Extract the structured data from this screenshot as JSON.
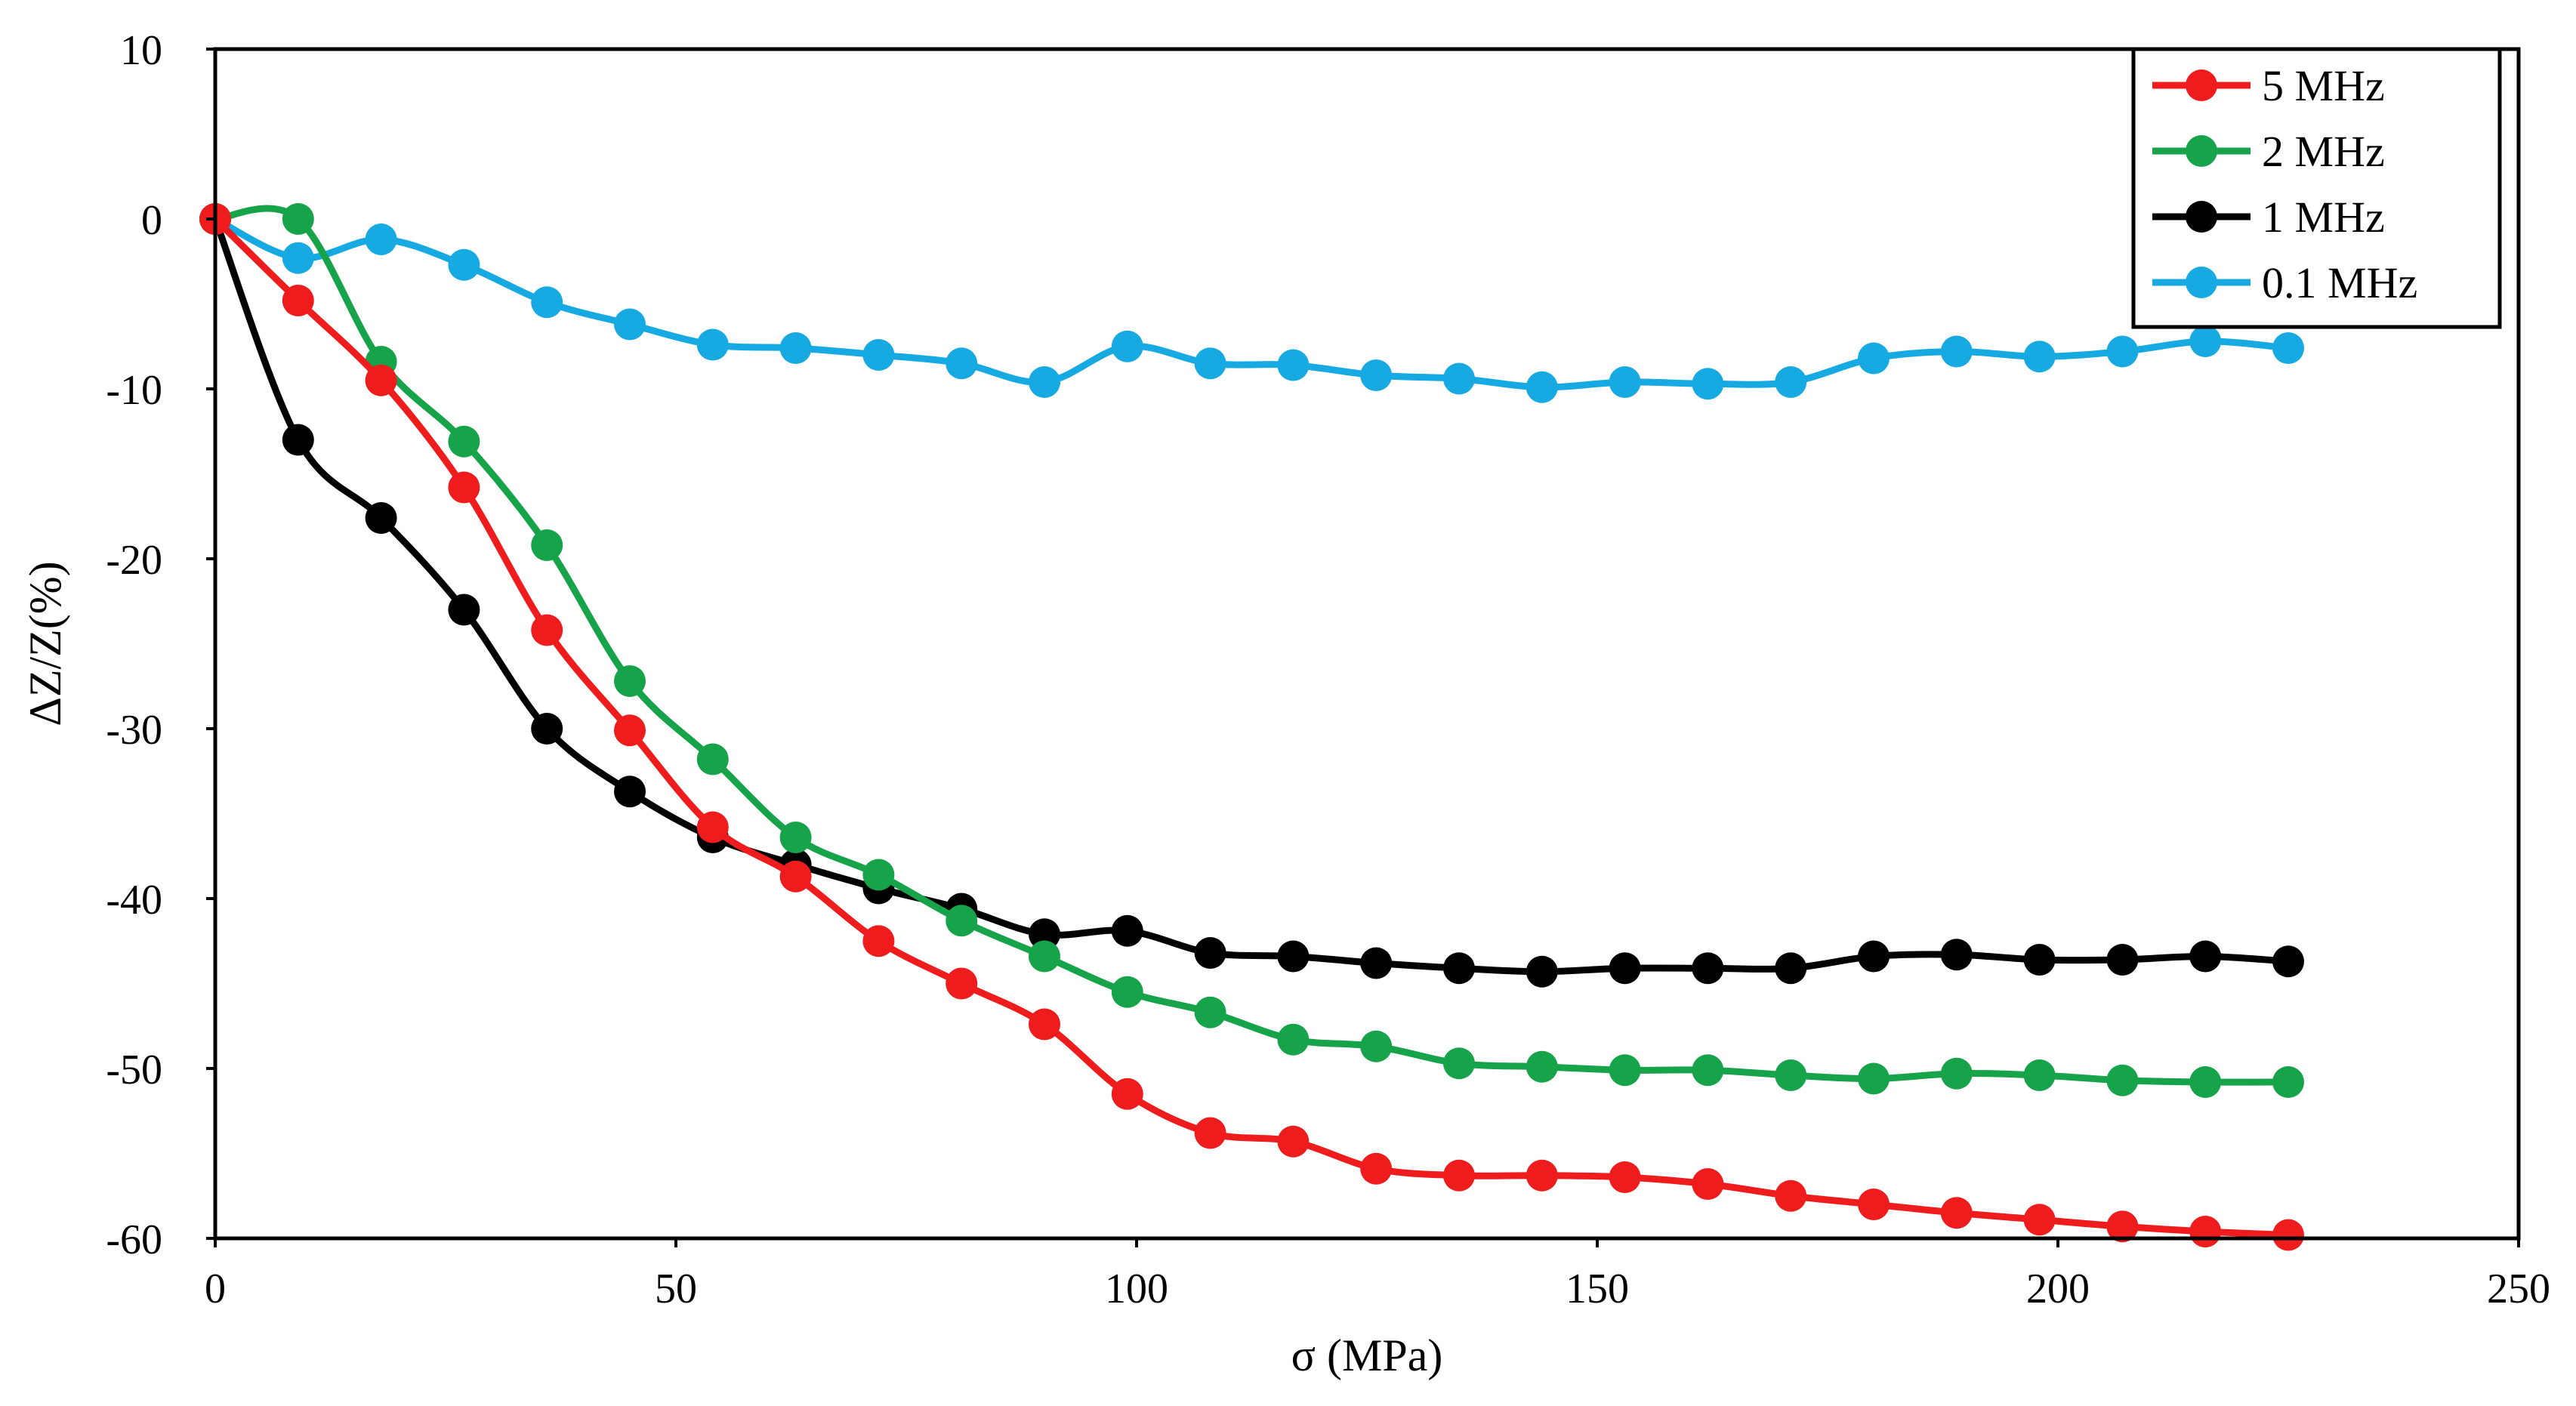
{
  "chart_data": {
    "type": "line",
    "title": "",
    "xlabel": "σ (MPa)",
    "ylabel": "ΔZ/Z(%)",
    "xlim": [
      0,
      250
    ],
    "ylim": [
      -60,
      10
    ],
    "xticks": [
      0,
      50,
      100,
      150,
      200,
      250
    ],
    "yticks": [
      10,
      0,
      -10,
      -20,
      -30,
      -40,
      -50,
      -60
    ],
    "grid": false,
    "legend_position": "top-right",
    "x": [
      0,
      9,
      18,
      27,
      36,
      45,
      54,
      63,
      72,
      81,
      90,
      99,
      108,
      117,
      126,
      135,
      144,
      153,
      162,
      171,
      180,
      189,
      198,
      207,
      216,
      225
    ],
    "series": [
      {
        "name": "5 MHz",
        "color": "#ee1c1c",
        "values": [
          0,
          -4.8,
          -9.5,
          -15.8,
          -24.2,
          -30.1,
          -35.8,
          -38.7,
          -42.5,
          -45.0,
          -47.4,
          -51.5,
          -53.8,
          -54.3,
          -55.9,
          -56.3,
          -56.3,
          -56.4,
          -56.8,
          -57.5,
          -58.0,
          -58.5,
          -58.9,
          -59.3,
          -59.6,
          -59.8
        ]
      },
      {
        "name": "2 MHz",
        "color": "#16a34a",
        "values": [
          0,
          0,
          -8.4,
          -13.1,
          -19.2,
          -27.2,
          -31.8,
          -36.4,
          -38.6,
          -41.3,
          -43.4,
          -45.5,
          -46.7,
          -48.3,
          -48.7,
          -49.7,
          -49.9,
          -50.1,
          -50.1,
          -50.4,
          -50.6,
          -50.3,
          -50.4,
          -50.7,
          -50.8,
          -50.8
        ]
      },
      {
        "name": "1 MHz",
        "color": "#000000",
        "values": [
          0,
          -13.0,
          -17.6,
          -23.0,
          -30.0,
          -33.7,
          -36.4,
          -38.0,
          -39.4,
          -40.6,
          -42.1,
          -41.9,
          -43.2,
          -43.4,
          -43.8,
          -44.1,
          -44.3,
          -44.1,
          -44.1,
          -44.1,
          -43.4,
          -43.3,
          -43.6,
          -43.6,
          -43.4,
          -43.7
        ]
      },
      {
        "name": "0.1 MHz",
        "color": "#17a9e1",
        "values": [
          0,
          -2.3,
          -1.2,
          -2.7,
          -4.9,
          -6.2,
          -7.4,
          -7.6,
          -8.0,
          -8.5,
          -9.6,
          -7.5,
          -8.5,
          -8.6,
          -9.2,
          -9.4,
          -9.9,
          -9.6,
          -9.7,
          -9.6,
          -8.2,
          -7.8,
          -8.1,
          -7.8,
          -7.2,
          -7.6
        ]
      }
    ]
  }
}
